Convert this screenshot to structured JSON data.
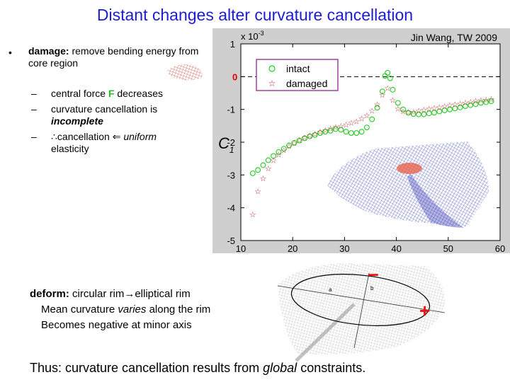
{
  "title": "Distant changes alter curvature cancellation",
  "left": {
    "bullet": "•",
    "damage_label": "damage:",
    "damage_text": " remove bending energy from core region",
    "subs": [
      {
        "dash": "–",
        "pre": "central force ",
        "em": "F",
        "post": " decreases"
      },
      {
        "dash": "–",
        "pre": "curvature cancellation is ",
        "em": "incomplete",
        "post": ""
      },
      {
        "dash": "–",
        "pre": "∴cancellation ⇐ ",
        "em": "uniform",
        "post": " elasticity"
      }
    ]
  },
  "deform": {
    "label": "deform:",
    "text1": " circular rim",
    "arrow": "→",
    "text2": "elliptical rim",
    "line2_pre": "Mean curvature ",
    "line2_em": "varies",
    "line2_post": " along the rim",
    "line3": "Becomes negative at minor axis"
  },
  "thus": {
    "pre": "Thus: curvature cancellation results from ",
    "em": "global",
    "post": " constraints."
  },
  "ellipse": {
    "a": "a",
    "b": "b",
    "minus": "–",
    "plus": "+"
  },
  "chart_data": {
    "type": "scatter",
    "title": "",
    "attribution": "Jin Wang, TW 2009",
    "xlabel": "",
    "ylabel": "C",
    "ylabel_sub": "1",
    "exponent_label": "x 10",
    "exponent_power": "-3",
    "xlim": [
      10,
      60
    ],
    "ylim": [
      -5,
      1
    ],
    "xticks": [
      "10",
      "20",
      "30",
      "40",
      "50",
      "60"
    ],
    "yticks": [
      "1",
      "0",
      "-1",
      "-2",
      "-3",
      "-4",
      "-5"
    ],
    "zero_line": true,
    "legend_position": "top-left",
    "colors": {
      "intact": "#22cc22",
      "damaged": "#b01818",
      "zero_label": "#dd0000",
      "legend_border": "#a040a0"
    },
    "series": [
      {
        "name": "intact",
        "marker": "circle",
        "x": [
          12.3,
          13.3,
          14.3,
          15.3,
          16.3,
          17.3,
          18.3,
          19.3,
          20.3,
          21.3,
          22.3,
          23.3,
          24.3,
          25.3,
          26.3,
          27.3,
          28.3,
          29.3,
          30.3,
          31.3,
          32.3,
          33.3,
          34.3,
          35.3,
          36.3,
          37.3,
          37.8,
          38.3,
          38.8,
          39.3,
          40.3,
          41.3,
          42.3,
          43.3,
          44.3,
          45.3,
          46.3,
          47.3,
          48.3,
          49.3,
          50.3,
          51.3,
          52.3,
          53.3,
          54.3,
          55.3,
          56.3,
          57.3,
          58.3
        ],
        "y": [
          -2.95,
          -2.85,
          -2.7,
          -2.55,
          -2.42,
          -2.3,
          -2.2,
          -2.1,
          -2.02,
          -1.95,
          -1.88,
          -1.82,
          -1.78,
          -1.72,
          -1.68,
          -1.65,
          -1.6,
          -1.62,
          -1.68,
          -1.72,
          -1.72,
          -1.68,
          -1.55,
          -1.3,
          -0.95,
          -0.45,
          0.02,
          0.12,
          -0.05,
          -0.4,
          -0.8,
          -1.0,
          -1.1,
          -1.14,
          -1.15,
          -1.15,
          -1.12,
          -1.1,
          -1.06,
          -1.03,
          -1.0,
          -0.97,
          -0.94,
          -0.9,
          -0.87,
          -0.84,
          -0.8,
          -0.78,
          -0.75
        ]
      },
      {
        "name": "damaged",
        "marker": "star",
        "x": [
          12.3,
          13.3,
          14.3,
          15.3,
          16.3,
          17.3,
          18.3,
          19.3,
          20.3,
          21.3,
          22.3,
          23.3,
          24.3,
          25.3,
          26.3,
          27.3,
          28.3,
          29.3,
          30.3,
          31.3,
          32.3,
          33.3,
          34.3,
          35.3,
          36.3,
          37.3,
          38.3,
          39.3,
          40.3,
          41.3,
          42.3,
          43.3,
          44.3,
          45.3,
          46.3,
          47.3,
          48.3,
          49.3,
          50.3,
          51.3,
          52.3,
          53.3,
          54.3,
          55.3,
          56.3,
          57.3,
          58.3
        ],
        "y": [
          -4.2,
          -3.5,
          -3.1,
          -2.8,
          -2.55,
          -2.38,
          -2.25,
          -2.12,
          -2.02,
          -1.94,
          -1.86,
          -1.8,
          -1.74,
          -1.68,
          -1.63,
          -1.58,
          -1.54,
          -1.5,
          -1.46,
          -1.41,
          -1.36,
          -1.28,
          -1.18,
          -1.04,
          -0.84,
          -0.55,
          -0.35,
          -0.72,
          -0.98,
          -1.06,
          -1.08,
          -1.07,
          -1.04,
          -1.01,
          -0.98,
          -0.95,
          -0.93,
          -0.9,
          -0.87,
          -0.85,
          -0.82,
          -0.79,
          -0.77,
          -0.74,
          -0.72,
          -0.7,
          -0.68
        ]
      }
    ]
  }
}
